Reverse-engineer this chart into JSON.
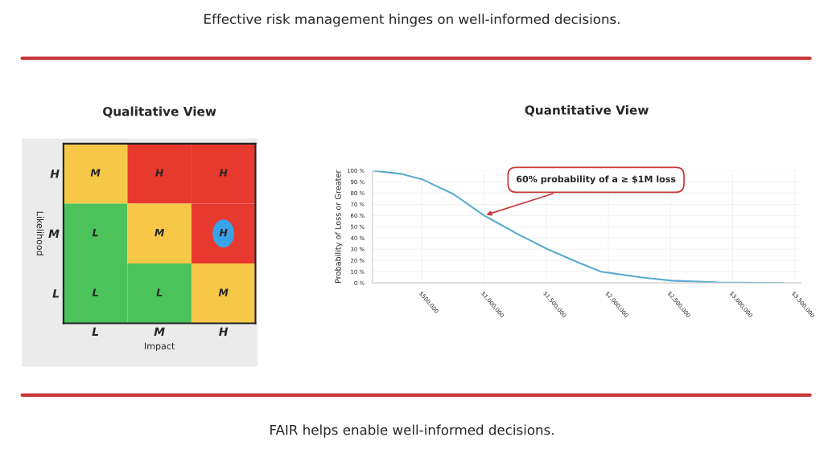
{
  "chart_data": [
    {
      "type": "heatmap",
      "title": "Qualitative View",
      "xlabel": "Impact",
      "ylabel": "Likelihood",
      "categories": [
        "L",
        "M",
        "H"
      ],
      "y_categories": [
        "H",
        "M",
        "L"
      ],
      "cells": [
        [
          "M",
          "H",
          "H"
        ],
        [
          "L",
          "M",
          "H"
        ],
        [
          "L",
          "L",
          "M"
        ]
      ],
      "annotations": [
        "Effective risk management hinges on well-informed decisions.",
        "FAIR helps enable well-informed decisions."
      ]
    },
    {
      "type": "line",
      "title": "Quantitative View",
      "ylabel": "Probability of Loss or Greater",
      "x": [
        109000,
        334000,
        506000,
        753000,
        1000000,
        1130000,
        1260000,
        1510000,
        1760000,
        1940000,
        2260000,
        2510000,
        2880000,
        3410000
      ],
      "series": [
        {
          "color": "#5aaccf",
          "values": [
            100,
            97,
            92,
            79,
            60,
            52,
            44,
            30,
            18,
            10,
            5,
            2,
            0.5,
            0
          ]
        }
      ],
      "xlim": [
        100000,
        3550000
      ],
      "xticks": [
        {
          "value": 500000,
          "label": "$500,000"
        },
        {
          "value": 1000000,
          "label": "$1,000,000"
        },
        {
          "value": 1500000,
          "label": "$1,500,000"
        },
        {
          "value": 2000000,
          "label": "$2,000,000"
        },
        {
          "value": 2500000,
          "label": "$2,500,000"
        },
        {
          "value": 3000000,
          "label": "$3,000,000"
        },
        {
          "value": 3500000,
          "label": "$3,500,000"
        }
      ],
      "ylim": [
        0,
        100
      ],
      "yticks": [
        {
          "value": 0,
          "label": "0 %"
        },
        {
          "value": 10,
          "label": "10 %"
        },
        {
          "value": 20,
          "label": "20 %"
        },
        {
          "value": 30,
          "label": "30 %"
        },
        {
          "value": 40,
          "label": "40 %"
        },
        {
          "value": 50,
          "label": "50 %"
        },
        {
          "value": 60,
          "label": "60 %"
        },
        {
          "value": 70,
          "label": "70 %"
        },
        {
          "value": 80,
          "label": "80 %"
        },
        {
          "value": 90,
          "label": "90 %"
        },
        {
          "value": 100,
          "label": "100 %"
        }
      ],
      "grid": true,
      "marker": "none",
      "line_style": "solid",
      "annotations": [
        {
          "text": "60% probability of a ≥ $1M loss",
          "x": 1000000,
          "y": 60
        }
      ]
    }
  ]
}
